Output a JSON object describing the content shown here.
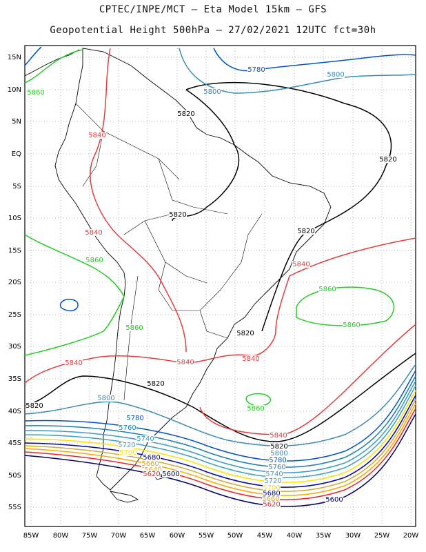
{
  "title_line1": "CPTEC/INPE/MCT –  Eta Model 15km – GFS",
  "title_line2": "Geopotential Height 500hPa – 27/02/2021 12UTC fct=30h",
  "lat_ticks": [
    "15N",
    "10N",
    "5N",
    "EQ",
    "5S",
    "10S",
    "15S",
    "20S",
    "25S",
    "30S",
    "35S",
    "40S",
    "45S",
    "50S",
    "55S"
  ],
  "lon_ticks": [
    "85W",
    "80W",
    "75W",
    "70W",
    "65W",
    "60W",
    "55W",
    "50W",
    "45W",
    "40W",
    "35W",
    "30W",
    "25W",
    "20W"
  ],
  "colors": {
    "c5600": "#000066",
    "c5620": "#ee2222",
    "c5640": "#ffa500",
    "c5660": "#ccaa33",
    "c5680": "#0000aa",
    "c5700": "#ffe000",
    "c5720": "#3f9fbf",
    "c5740": "#3a9ac8",
    "c5760": "#1a7fae",
    "c5780": "#0050cc",
    "c5800": "#3a8ab4",
    "c5820": "#000000",
    "c5840": "#e43c3c",
    "c5860": "#22cc22"
  },
  "contour_labels": [
    {
      "text": "5780",
      "key": "c5780"
    },
    {
      "text": "5800",
      "key": "c5800"
    },
    {
      "text": "5800",
      "key": "c5800"
    },
    {
      "text": "5860",
      "key": "c5860"
    },
    {
      "text": "5820",
      "key": "c5820"
    },
    {
      "text": "5840",
      "key": "c5840"
    },
    {
      "text": "5820",
      "key": "c5820"
    },
    {
      "text": "5820",
      "key": "c5820"
    },
    {
      "text": "5840",
      "key": "c5840"
    },
    {
      "text": "5820",
      "key": "c5820"
    },
    {
      "text": "5860",
      "key": "c5860"
    },
    {
      "text": "5840",
      "key": "c5840"
    },
    {
      "text": "5860",
      "key": "c5860"
    },
    {
      "text": "5860",
      "key": "c5860"
    },
    {
      "text": "5860",
      "key": "c5860"
    },
    {
      "text": "5820",
      "key": "c5820"
    },
    {
      "text": "5840",
      "key": "c5840"
    },
    {
      "text": "5840",
      "key": "c5840"
    },
    {
      "text": "5840",
      "key": "c5840"
    },
    {
      "text": "5820",
      "key": "c5820"
    },
    {
      "text": "5820",
      "key": "c5820"
    },
    {
      "text": "5800",
      "key": "c5800"
    },
    {
      "text": "5860",
      "key": "c5860"
    },
    {
      "text": "5780",
      "key": "c5780"
    },
    {
      "text": "5760",
      "key": "c5760"
    },
    {
      "text": "5740",
      "key": "c5740"
    },
    {
      "text": "5720",
      "key": "c5720"
    },
    {
      "text": "5700",
      "key": "c5700"
    },
    {
      "text": "5680",
      "key": "c5680"
    },
    {
      "text": "5660",
      "key": "c5660"
    },
    {
      "text": "5640",
      "key": "c5640"
    },
    {
      "text": "5620",
      "key": "c5620"
    },
    {
      "text": "5600",
      "key": "c5600"
    },
    {
      "text": "5840",
      "key": "c5840"
    },
    {
      "text": "5820",
      "key": "c5820"
    },
    {
      "text": "5800",
      "key": "c5800"
    },
    {
      "text": "5780",
      "key": "c5780"
    },
    {
      "text": "5760",
      "key": "c5760"
    },
    {
      "text": "5740",
      "key": "c5740"
    },
    {
      "text": "5720",
      "key": "c5720"
    },
    {
      "text": "5700",
      "key": "c5700"
    },
    {
      "text": "5680",
      "key": "c5680"
    },
    {
      "text": "5660",
      "key": "c5660"
    },
    {
      "text": "5620",
      "key": "c5620"
    },
    {
      "text": "5600",
      "key": "c5600"
    }
  ]
}
